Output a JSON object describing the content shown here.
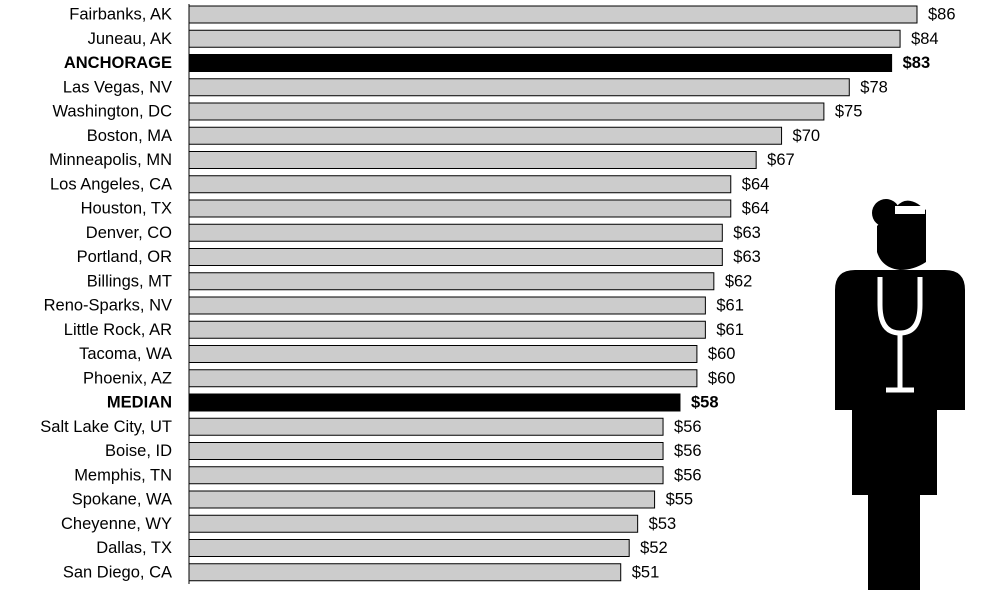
{
  "chart_data": {
    "type": "bar",
    "orientation": "horizontal",
    "value_prefix": "$",
    "categories": [
      "Fairbanks, AK",
      "Juneau, AK",
      "ANCHORAGE",
      "Las Vegas, NV",
      "Washington, DC",
      "Boston, MA",
      "Minneapolis, MN",
      "Los Angeles, CA",
      "Houston, TX",
      "Denver, CO",
      "Portland, OR",
      "Billings, MT",
      "Reno-Sparks, NV",
      "Little Rock, AR",
      "Tacoma, WA",
      "Phoenix, AZ",
      "MEDIAN",
      "Salt Lake City, UT",
      "Boise, ID",
      "Memphis, TN",
      "Spokane, WA",
      "Cheyenne, WY",
      "Dallas, TX",
      "San Diego, CA"
    ],
    "values": [
      86,
      84,
      83,
      78,
      75,
      70,
      67,
      64,
      64,
      63,
      63,
      62,
      61,
      61,
      60,
      60,
      58,
      56,
      56,
      56,
      55,
      53,
      52,
      51
    ],
    "highlighted": [
      "ANCHORAGE",
      "MEDIAN"
    ],
    "colors": {
      "bar": "#cccccc",
      "highlight": "#000000",
      "outline": "#000000"
    },
    "xlim": [
      0,
      86
    ],
    "grid": false,
    "legend": "none",
    "illustration": "doctor-with-stethoscope-icon"
  }
}
